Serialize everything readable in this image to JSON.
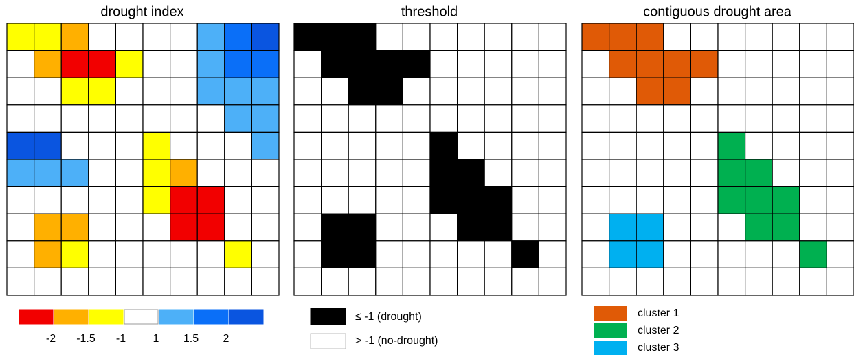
{
  "panels": [
    {
      "title": "drought index"
    },
    {
      "title": "threshold"
    },
    {
      "title": "contiguous drought area"
    }
  ],
  "index_legend": {
    "labels": [
      "-2",
      "-1.5",
      "-1",
      "1",
      "1.5",
      "2"
    ]
  },
  "threshold_legend": {
    "labels": [
      "≤ -1 (drought)",
      "> -1 (no-drought)"
    ]
  },
  "cluster_legend": {
    "labels": [
      "cluster 1",
      "cluster 2",
      "cluster 3"
    ]
  }
}
